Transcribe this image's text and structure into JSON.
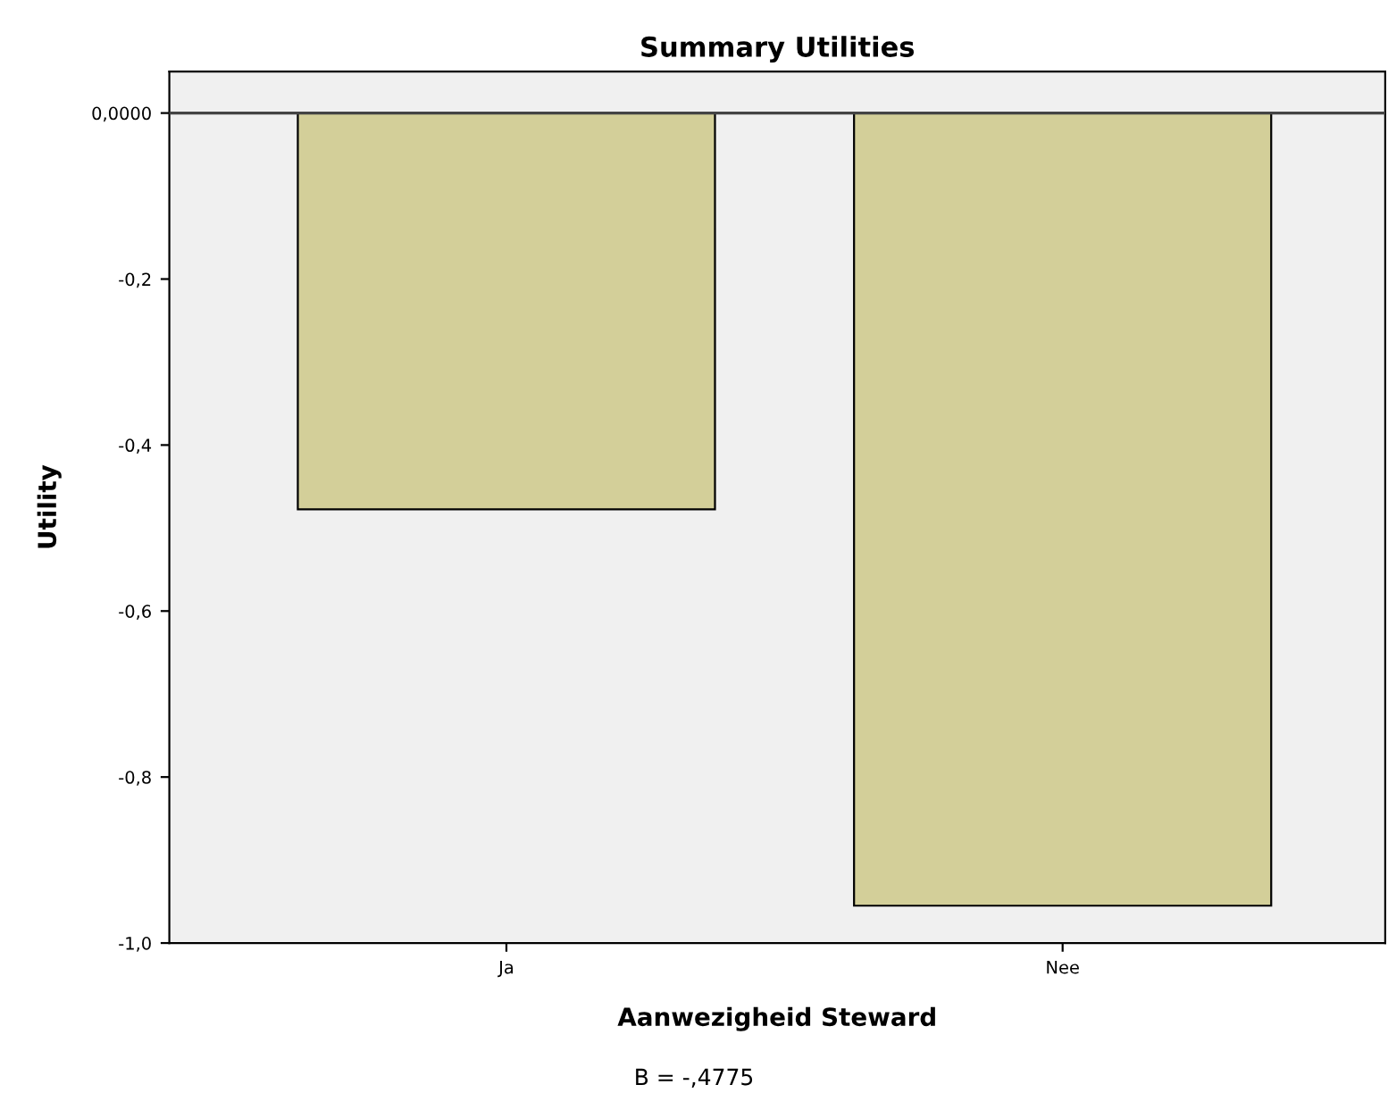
{
  "chart_data": {
    "type": "bar",
    "title": "Summary Utilities",
    "xlabel": "Aanwezigheid Steward",
    "ylabel": "Utility",
    "categories": [
      "Ja",
      "Nee"
    ],
    "values": [
      -0.4775,
      -0.955
    ],
    "color": "#d3cf99",
    "ylim": [
      -1.0,
      0.05
    ],
    "yticks": [
      {
        "value": 0,
        "label": "0,0000"
      },
      {
        "value": -0.2,
        "label": "-0,2"
      },
      {
        "value": -0.4,
        "label": "-0,4"
      },
      {
        "value": -0.6,
        "label": "-0,6"
      },
      {
        "value": -0.8,
        "label": "-0,8"
      },
      {
        "value": -1.0,
        "label": "-1,0"
      }
    ],
    "ref_lines": [
      {
        "axis": "y",
        "value": 0,
        "color": "#444444"
      }
    ],
    "annotations": [
      "B = -,4775"
    ],
    "grid": false,
    "legend": false
  }
}
